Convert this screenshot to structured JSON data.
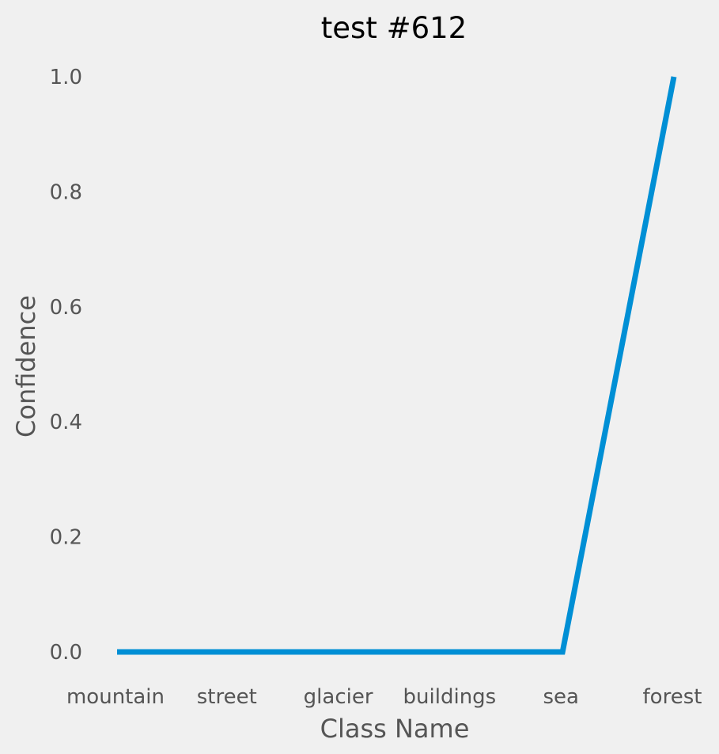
{
  "chart_data": {
    "type": "line",
    "title": "test #612",
    "xlabel": "Class Name",
    "ylabel": "Confidence",
    "categories": [
      "mountain",
      "street",
      "glacier",
      "buildings",
      "sea",
      "forest"
    ],
    "series": [
      {
        "values": [
          0.0,
          0.0,
          0.0,
          0.0,
          0.0,
          1.0
        ]
      }
    ],
    "ylim": [
      -0.05,
      1.0
    ],
    "yticks": [
      "0.0",
      "0.2",
      "0.4",
      "0.6",
      "0.8",
      "1.0"
    ],
    "grid": false,
    "legend": "none",
    "colors": {
      "background": "#f0f0f0",
      "line": "#008fd5",
      "text": "#555555",
      "title": "#000000"
    }
  }
}
